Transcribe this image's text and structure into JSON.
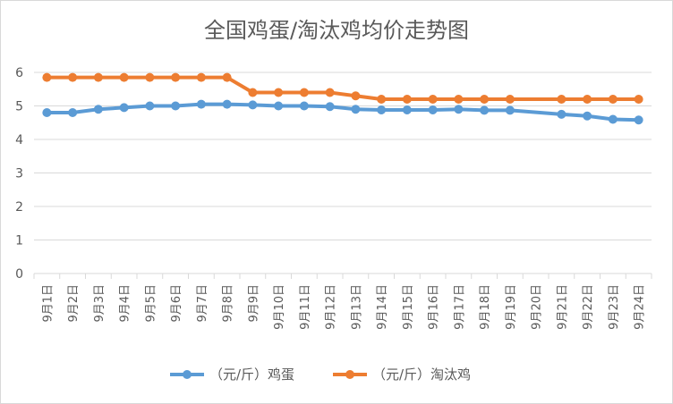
{
  "chart_data": {
    "type": "line",
    "title": "全国鸡蛋/淘汰鸡均价走势图",
    "categories": [
      "9月1日",
      "9月2日",
      "9月3日",
      "9月4日",
      "9月5日",
      "9月6日",
      "9月7日",
      "9月8日",
      "9月9日",
      "9月10日",
      "9月11日",
      "9月12日",
      "9月13日",
      "9月14日",
      "9月15日",
      "9月16日",
      "9月17日",
      "9月18日",
      "9月19日",
      "9月20日",
      "9月21日",
      "9月22日",
      "9月23日",
      "9月24日"
    ],
    "series": [
      {
        "name": "（元/斤）鸡蛋",
        "color": "#5B9BD5",
        "values": [
          4.8,
          4.8,
          4.9,
          4.95,
          5.0,
          5.0,
          5.05,
          5.05,
          5.03,
          5.0,
          5.0,
          4.98,
          4.9,
          4.88,
          4.88,
          4.88,
          4.9,
          4.87,
          4.87,
          null,
          4.75,
          4.7,
          4.6,
          4.58
        ]
      },
      {
        "name": "（元/斤）淘汰鸡",
        "color": "#ED7D31",
        "values": [
          5.85,
          5.85,
          5.85,
          5.85,
          5.85,
          5.85,
          5.85,
          5.85,
          5.4,
          5.4,
          5.4,
          5.4,
          5.3,
          5.2,
          5.2,
          5.2,
          5.2,
          5.2,
          5.2,
          null,
          5.2,
          5.2,
          5.2,
          5.2
        ]
      }
    ],
    "ylim": [
      0,
      6
    ],
    "yticks": [
      0,
      1,
      2,
      3,
      4,
      5,
      6
    ],
    "grid": true,
    "legend": "bottom"
  }
}
